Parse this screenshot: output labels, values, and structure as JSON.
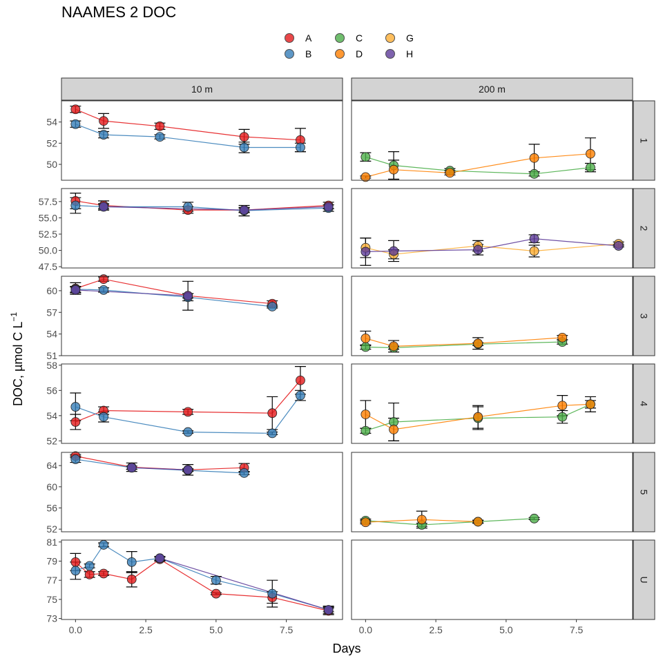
{
  "chart_data": {
    "type": "line",
    "title": "NAAMES 2 DOC",
    "xlabel": "Days",
    "ylabel_main": "DOC, µmol C L",
    "ylabel_sup": "−1",
    "xlim": [
      -0.5,
      9.5
    ],
    "xticks": [
      0,
      2.5,
      5,
      7.5
    ],
    "xtick_labels": [
      "0.0",
      "2.5",
      "5.0",
      "7.5"
    ],
    "legend_position": "top",
    "col_strips": [
      "10 m",
      "200 m"
    ],
    "legend": [
      {
        "key": "A",
        "color": "#E41A1C"
      },
      {
        "key": "B",
        "color": "#377EB8"
      },
      {
        "key": "C",
        "color": "#4DAF4A"
      },
      {
        "key": "D",
        "color": "#FF7F00"
      },
      {
        "key": "G",
        "color": "#FDAE35"
      },
      {
        "key": "H",
        "color": "#5E3C99"
      }
    ],
    "rows": [
      {
        "strip": "1",
        "ylim": [
          48.5,
          56
        ],
        "yticks": [
          50,
          52,
          54
        ],
        "ytick_labels": [
          "50",
          "52",
          "54"
        ],
        "panels": [
          {
            "series": [
              {
                "key": "A",
                "points": [
                  [
                    0,
                    55.2,
                    0.3
                  ],
                  [
                    1,
                    54.1,
                    0.7
                  ],
                  [
                    3,
                    53.6,
                    0.3
                  ],
                  [
                    6,
                    52.6,
                    0.7
                  ],
                  [
                    8,
                    52.3,
                    1.1
                  ]
                ]
              },
              {
                "key": "B",
                "points": [
                  [
                    0,
                    53.8,
                    0.3
                  ],
                  [
                    1,
                    52.8,
                    0.3
                  ],
                  [
                    3,
                    52.6,
                    0.2
                  ],
                  [
                    6,
                    51.6,
                    0.5
                  ],
                  [
                    8,
                    51.6,
                    0.4
                  ]
                ]
              }
            ]
          },
          {
            "series": [
              {
                "key": "C",
                "points": [
                  [
                    0,
                    50.7,
                    0.4
                  ],
                  [
                    1,
                    49.9,
                    1.3
                  ],
                  [
                    3,
                    49.4,
                    0.2
                  ],
                  [
                    6,
                    49.1,
                    0.2
                  ],
                  [
                    8,
                    49.7,
                    0.4
                  ]
                ]
              },
              {
                "key": "D",
                "points": [
                  [
                    0,
                    48.8,
                    0.1
                  ],
                  [
                    1,
                    49.5,
                    0.9
                  ],
                  [
                    3,
                    49.2,
                    0.2
                  ],
                  [
                    6,
                    50.6,
                    1.3
                  ],
                  [
                    8,
                    51.0,
                    1.5
                  ]
                ]
              }
            ]
          }
        ]
      },
      {
        "strip": "2",
        "ylim": [
          47.3,
          59.5
        ],
        "yticks": [
          47.5,
          50.0,
          52.5,
          55.0,
          57.5
        ],
        "ytick_labels": [
          "47.5",
          "50.0",
          "52.5",
          "55.0",
          "57.5"
        ],
        "panels": [
          {
            "series": [
              {
                "key": "A",
                "points": [
                  [
                    0,
                    57.6,
                    1.2
                  ],
                  [
                    1,
                    56.9,
                    0.7
                  ],
                  [
                    4,
                    56.2,
                    0.5
                  ],
                  [
                    6,
                    56.2,
                    0.4
                  ],
                  [
                    9,
                    56.9,
                    0.5
                  ]
                ]
              },
              {
                "key": "B",
                "points": [
                  [
                    0,
                    56.9,
                    1.2
                  ],
                  [
                    1,
                    56.7,
                    0.5
                  ],
                  [
                    4,
                    56.7,
                    0.7
                  ],
                  [
                    6,
                    56.1,
                    0.8
                  ],
                  [
                    9,
                    56.5,
                    0.5
                  ]
                ]
              },
              {
                "key": "H",
                "points": [
                  [
                    1,
                    56.7,
                    0.3
                  ],
                  [
                    6,
                    56.2,
                    0.3
                  ],
                  [
                    9,
                    56.7,
                    0.3
                  ]
                ]
              }
            ]
          },
          {
            "series": [
              {
                "key": "G",
                "points": [
                  [
                    0,
                    50.4,
                    1.5
                  ],
                  [
                    1,
                    49.4,
                    0.7
                  ],
                  [
                    4,
                    50.7,
                    0.8
                  ],
                  [
                    6,
                    49.9,
                    0.9
                  ],
                  [
                    9,
                    51.0,
                    0.3
                  ]
                ]
              },
              {
                "key": "H",
                "points": [
                  [
                    0,
                    49.8,
                    2.1
                  ],
                  [
                    1,
                    49.9,
                    1.6
                  ],
                  [
                    4,
                    50.1,
                    0.8
                  ],
                  [
                    6,
                    51.8,
                    0.6
                  ],
                  [
                    9,
                    50.7,
                    0.2
                  ]
                ]
              }
            ]
          }
        ]
      },
      {
        "strip": "3",
        "ylim": [
          51,
          62
        ],
        "yticks": [
          51,
          54,
          57,
          60
        ],
        "ytick_labels": [
          "51",
          "54",
          "57",
          "60"
        ],
        "panels": [
          {
            "series": [
              {
                "key": "A",
                "points": [
                  [
                    0,
                    60.3,
                    0.8
                  ],
                  [
                    1,
                    61.6,
                    0.3
                  ],
                  [
                    4,
                    59.3,
                    2.0
                  ],
                  [
                    7,
                    58.2,
                    0.4
                  ]
                ]
              },
              {
                "key": "B",
                "points": [
                  [
                    0,
                    60.2,
                    0.4
                  ],
                  [
                    1,
                    60.1,
                    0.3
                  ],
                  [
                    4,
                    59.1,
                    0.5
                  ],
                  [
                    7,
                    57.8,
                    0.2
                  ]
                ]
              },
              {
                "key": "H",
                "points": [
                  [
                    0,
                    60.1,
                    0.4
                  ],
                  [
                    4,
                    59.3,
                    0.3
                  ]
                ]
              }
            ]
          },
          {
            "series": [
              {
                "key": "C",
                "points": [
                  [
                    0,
                    52.2,
                    0.3
                  ],
                  [
                    1,
                    52.1,
                    0.2
                  ],
                  [
                    4,
                    52.6,
                    0.2
                  ],
                  [
                    7,
                    52.9,
                    0.3
                  ]
                ]
              },
              {
                "key": "D",
                "points": [
                  [
                    0,
                    53.4,
                    1.0
                  ],
                  [
                    1,
                    52.3,
                    0.8
                  ],
                  [
                    4,
                    52.7,
                    0.8
                  ],
                  [
                    7,
                    53.5,
                    0.3
                  ]
                ]
              }
            ]
          }
        ]
      },
      {
        "strip": "4",
        "ylim": [
          51.8,
          58.1
        ],
        "yticks": [
          52,
          54,
          56,
          58
        ],
        "ytick_labels": [
          "52",
          "54",
          "56",
          "58"
        ],
        "panels": [
          {
            "series": [
              {
                "key": "A",
                "points": [
                  [
                    0,
                    53.5,
                    0.6
                  ],
                  [
                    1,
                    54.4,
                    0.3
                  ],
                  [
                    4,
                    54.3,
                    0.2
                  ],
                  [
                    7,
                    54.2,
                    1.3
                  ],
                  [
                    8,
                    56.8,
                    1.1
                  ]
                ]
              },
              {
                "key": "B",
                "points": [
                  [
                    0,
                    54.7,
                    1.1
                  ],
                  [
                    1,
                    53.9,
                    0.4
                  ],
                  [
                    4,
                    52.7,
                    0.1
                  ],
                  [
                    7,
                    52.6,
                    0.1
                  ],
                  [
                    8,
                    55.6,
                    0.4
                  ]
                ]
              }
            ]
          },
          {
            "series": [
              {
                "key": "C",
                "points": [
                  [
                    0,
                    52.8,
                    0.2
                  ],
                  [
                    1,
                    53.5,
                    1.5
                  ],
                  [
                    4,
                    53.8,
                    0.9
                  ],
                  [
                    7,
                    53.9,
                    0.5
                  ],
                  [
                    8,
                    54.9,
                    0.3
                  ]
                ]
              },
              {
                "key": "D",
                "points": [
                  [
                    0,
                    54.1,
                    1.1
                  ],
                  [
                    1,
                    52.9,
                    0.9
                  ],
                  [
                    4,
                    53.9,
                    0.9
                  ],
                  [
                    7,
                    54.8,
                    0.8
                  ],
                  [
                    8,
                    54.9,
                    0.6
                  ]
                ]
              }
            ]
          }
        ]
      },
      {
        "strip": "5",
        "ylim": [
          51.5,
          66.5
        ],
        "yticks": [
          52,
          56,
          60,
          64
        ],
        "ytick_labels": [
          "52",
          "56",
          "60",
          "64"
        ],
        "panels": [
          {
            "series": [
              {
                "key": "A",
                "points": [
                  [
                    0,
                    65.8,
                    0.3
                  ],
                  [
                    2,
                    63.7,
                    0.8
                  ],
                  [
                    4,
                    63.2,
                    1.0
                  ],
                  [
                    6,
                    63.6,
                    0.8
                  ]
                ]
              },
              {
                "key": "B",
                "points": [
                  [
                    0,
                    65.2,
                    0.6
                  ],
                  [
                    2,
                    63.6,
                    0.3
                  ],
                  [
                    4,
                    63.1,
                    0.2
                  ],
                  [
                    6,
                    62.6,
                    0.3
                  ]
                ]
              },
              {
                "key": "H",
                "points": [
                  [
                    2,
                    63.6,
                    0.3
                  ],
                  [
                    4,
                    63.2,
                    0.2
                  ]
                ]
              }
            ]
          },
          {
            "series": [
              {
                "key": "C",
                "points": [
                  [
                    0,
                    53.6,
                    0.3
                  ],
                  [
                    2,
                    52.8,
                    0.3
                  ],
                  [
                    4,
                    53.4,
                    0.2
                  ],
                  [
                    6,
                    54.0,
                    0.2
                  ]
                ]
              },
              {
                "key": "D",
                "points": [
                  [
                    0,
                    53.3,
                    0.3
                  ],
                  [
                    2,
                    53.8,
                    1.6
                  ],
                  [
                    4,
                    53.4,
                    0.3
                  ]
                ]
              }
            ]
          }
        ]
      },
      {
        "strip": "U",
        "ylim": [
          72.9,
          81.2
        ],
        "yticks": [
          73,
          75,
          77,
          79,
          81
        ],
        "ytick_labels": [
          "73",
          "75",
          "77",
          "79",
          "81"
        ],
        "panels": [
          {
            "series": [
              {
                "key": "A",
                "points": [
                  [
                    0,
                    78.9,
                    0.9
                  ],
                  [
                    0.5,
                    77.6,
                    0.3
                  ],
                  [
                    1,
                    77.7,
                    0.2
                  ],
                  [
                    2,
                    77.1,
                    0.8
                  ],
                  [
                    3,
                    79.2,
                    0.2
                  ],
                  [
                    5,
                    75.6,
                    0.1
                  ],
                  [
                    7,
                    75.2,
                    0.6
                  ],
                  [
                    9,
                    73.8,
                    0.4
                  ]
                ]
              },
              {
                "key": "B",
                "points": [
                  [
                    0,
                    78.0,
                    0.9
                  ],
                  [
                    0.5,
                    78.5,
                    0.2
                  ],
                  [
                    1,
                    80.7,
                    0.2
                  ],
                  [
                    2,
                    78.9,
                    1.1
                  ],
                  [
                    3,
                    79.3,
                    0.2
                  ],
                  [
                    5,
                    77.0,
                    0.4
                  ],
                  [
                    7,
                    75.6,
                    1.4
                  ],
                  [
                    9,
                    73.9,
                    0.4
                  ]
                ]
              },
              {
                "key": "H",
                "points": [
                  [
                    3,
                    79.3,
                    0.2
                  ],
                  [
                    9,
                    73.9,
                    0.2
                  ]
                ]
              }
            ]
          },
          {
            "series": []
          }
        ]
      }
    ]
  }
}
